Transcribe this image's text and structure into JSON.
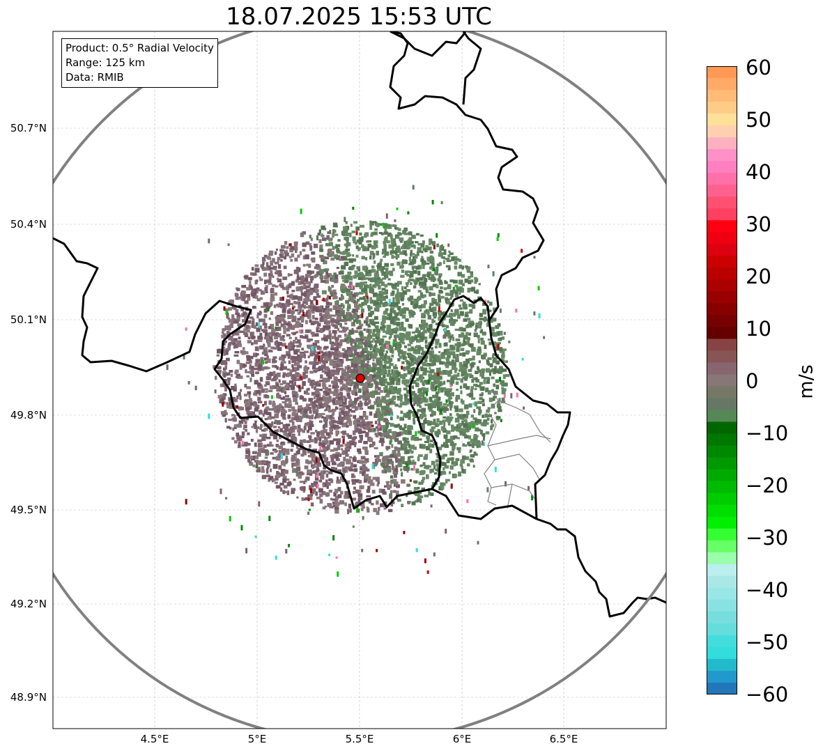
{
  "title": "18.07.2025 15:53 UTC",
  "info": {
    "product": "Product: 0.5° Radial Velocity",
    "range": "Range: 125 km",
    "data": "Data: RMIB"
  },
  "axes": {
    "lat_ticks": [
      "50.7°N",
      "50.4°N",
      "50.1°N",
      "49.8°N",
      "49.5°N",
      "49.2°N",
      "48.9°N"
    ],
    "lon_ticks": [
      "4.5°E",
      "5°E",
      "5.5°E",
      "6°E",
      "6.5°E"
    ],
    "grid": true
  },
  "radar": {
    "site_lon": 5.5,
    "site_lat": 49.91,
    "range_km": 125
  },
  "colorbar": {
    "unit": "m/s",
    "min": -60,
    "max": 60,
    "ticks": [
      "60",
      "50",
      "40",
      "30",
      "20",
      "10",
      "0",
      "−10",
      "−20",
      "−30",
      "−40",
      "−50",
      "−60"
    ],
    "colors": [
      "#ff9955",
      "#ffaa66",
      "#ffbb77",
      "#ffcc88",
      "#ffe099",
      "#ffd0b0",
      "#ffb0c0",
      "#ff90c8",
      "#ff80c0",
      "#ff70a8",
      "#ff6090",
      "#ff5070",
      "#ff4060",
      "#ff0010",
      "#ee0010",
      "#dd0010",
      "#cc0000",
      "#bb0000",
      "#aa0000",
      "#990000",
      "#880000",
      "#770000",
      "#660000",
      "#884444",
      "#885555",
      "#886670",
      "#887777",
      "#777766",
      "#667766",
      "#558855",
      "#006600",
      "#007700",
      "#008800",
      "#009900",
      "#00aa00",
      "#00bb00",
      "#00cc00",
      "#00dd00",
      "#00ee00",
      "#33ff33",
      "#66ff66",
      "#99ffaa",
      "#bbeeee",
      "#aae8e8",
      "#99e6e6",
      "#88e2e2",
      "#77dddd",
      "#66dddd",
      "#44dddd",
      "#33dddd",
      "#22bbcc",
      "#2299cc",
      "#2277bb"
    ]
  },
  "legend_colors": {
    "pos_velocity": "#7d6270",
    "neg_velocity": "#5e7f5c",
    "border": "#000000",
    "admin": "#808080",
    "range_ring": "#808080",
    "site": "#e00000"
  }
}
